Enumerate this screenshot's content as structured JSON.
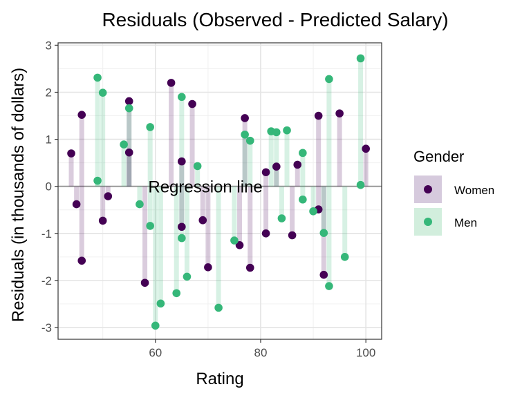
{
  "chart_data": {
    "type": "scatter",
    "title": "Residuals (Observed - Predicted Salary)",
    "xlabel": "Rating",
    "ylabel": "Residuals (in thousands of dollars)",
    "xlim": [
      41.5,
      103
    ],
    "ylim": [
      -3.25,
      3.05
    ],
    "x_ticks": [
      60,
      80,
      100
    ],
    "y_ticks": [
      -3,
      -2,
      -1,
      0,
      1,
      2,
      3
    ],
    "grid": true,
    "annotation": {
      "text": "Regression line",
      "x": 69.5,
      "y": 0
    },
    "legend": {
      "title": "Gender",
      "position": "right",
      "entries": [
        "Women",
        "Men"
      ]
    },
    "series": [
      {
        "name": "Women",
        "color": "#440154",
        "segment_color": "#d6cadd",
        "points": [
          {
            "x": 44,
            "y": 0.7
          },
          {
            "x": 45,
            "y": -0.38
          },
          {
            "x": 46,
            "y": 1.52
          },
          {
            "x": 46,
            "y": -1.58
          },
          {
            "x": 50,
            "y": -0.73
          },
          {
            "x": 51,
            "y": -0.21
          },
          {
            "x": 55,
            "y": 1.81
          },
          {
            "x": 55,
            "y": 0.72
          },
          {
            "x": 58,
            "y": -2.05
          },
          {
            "x": 63,
            "y": 2.2
          },
          {
            "x": 65,
            "y": 0.53
          },
          {
            "x": 65,
            "y": -0.86
          },
          {
            "x": 67,
            "y": 1.75
          },
          {
            "x": 69,
            "y": -0.72
          },
          {
            "x": 70,
            "y": -1.72
          },
          {
            "x": 76,
            "y": -1.25
          },
          {
            "x": 77,
            "y": 1.45
          },
          {
            "x": 78,
            "y": -1.73
          },
          {
            "x": 81,
            "y": 0.3
          },
          {
            "x": 81,
            "y": -1.0
          },
          {
            "x": 83,
            "y": 0.42
          },
          {
            "x": 86,
            "y": -1.04
          },
          {
            "x": 87,
            "y": 0.46
          },
          {
            "x": 91,
            "y": 1.5
          },
          {
            "x": 91,
            "y": -0.49
          },
          {
            "x": 92,
            "y": -1.88
          },
          {
            "x": 95,
            "y": 1.55
          },
          {
            "x": 100,
            "y": 0.8
          }
        ]
      },
      {
        "name": "Men",
        "color": "#35b779",
        "segment_color": "#d2eedd",
        "points": [
          {
            "x": 49,
            "y": 2.31
          },
          {
            "x": 49,
            "y": 0.12
          },
          {
            "x": 50,
            "y": 1.99
          },
          {
            "x": 54,
            "y": 0.89
          },
          {
            "x": 55,
            "y": 1.66
          },
          {
            "x": 57,
            "y": -0.38
          },
          {
            "x": 59,
            "y": 1.26
          },
          {
            "x": 59,
            "y": -0.84
          },
          {
            "x": 60,
            "y": -2.96
          },
          {
            "x": 61,
            "y": -2.49
          },
          {
            "x": 64,
            "y": -2.27
          },
          {
            "x": 65,
            "y": 1.9
          },
          {
            "x": 65,
            "y": -1.1
          },
          {
            "x": 66,
            "y": -1.92
          },
          {
            "x": 68,
            "y": 0.43
          },
          {
            "x": 72,
            "y": -2.58
          },
          {
            "x": 75,
            "y": -1.15
          },
          {
            "x": 77,
            "y": 1.1
          },
          {
            "x": 78,
            "y": 0.97
          },
          {
            "x": 82,
            "y": 1.17
          },
          {
            "x": 83,
            "y": 1.15
          },
          {
            "x": 84,
            "y": -0.68
          },
          {
            "x": 85,
            "y": 1.19
          },
          {
            "x": 88,
            "y": 0.71
          },
          {
            "x": 88,
            "y": -0.28
          },
          {
            "x": 90,
            "y": -0.53
          },
          {
            "x": 92,
            "y": -0.99
          },
          {
            "x": 93,
            "y": 2.28
          },
          {
            "x": 93,
            "y": -2.12
          },
          {
            "x": 96,
            "y": -1.5
          },
          {
            "x": 99,
            "y": 2.72
          },
          {
            "x": 99,
            "y": 0.03
          }
        ]
      }
    ]
  }
}
